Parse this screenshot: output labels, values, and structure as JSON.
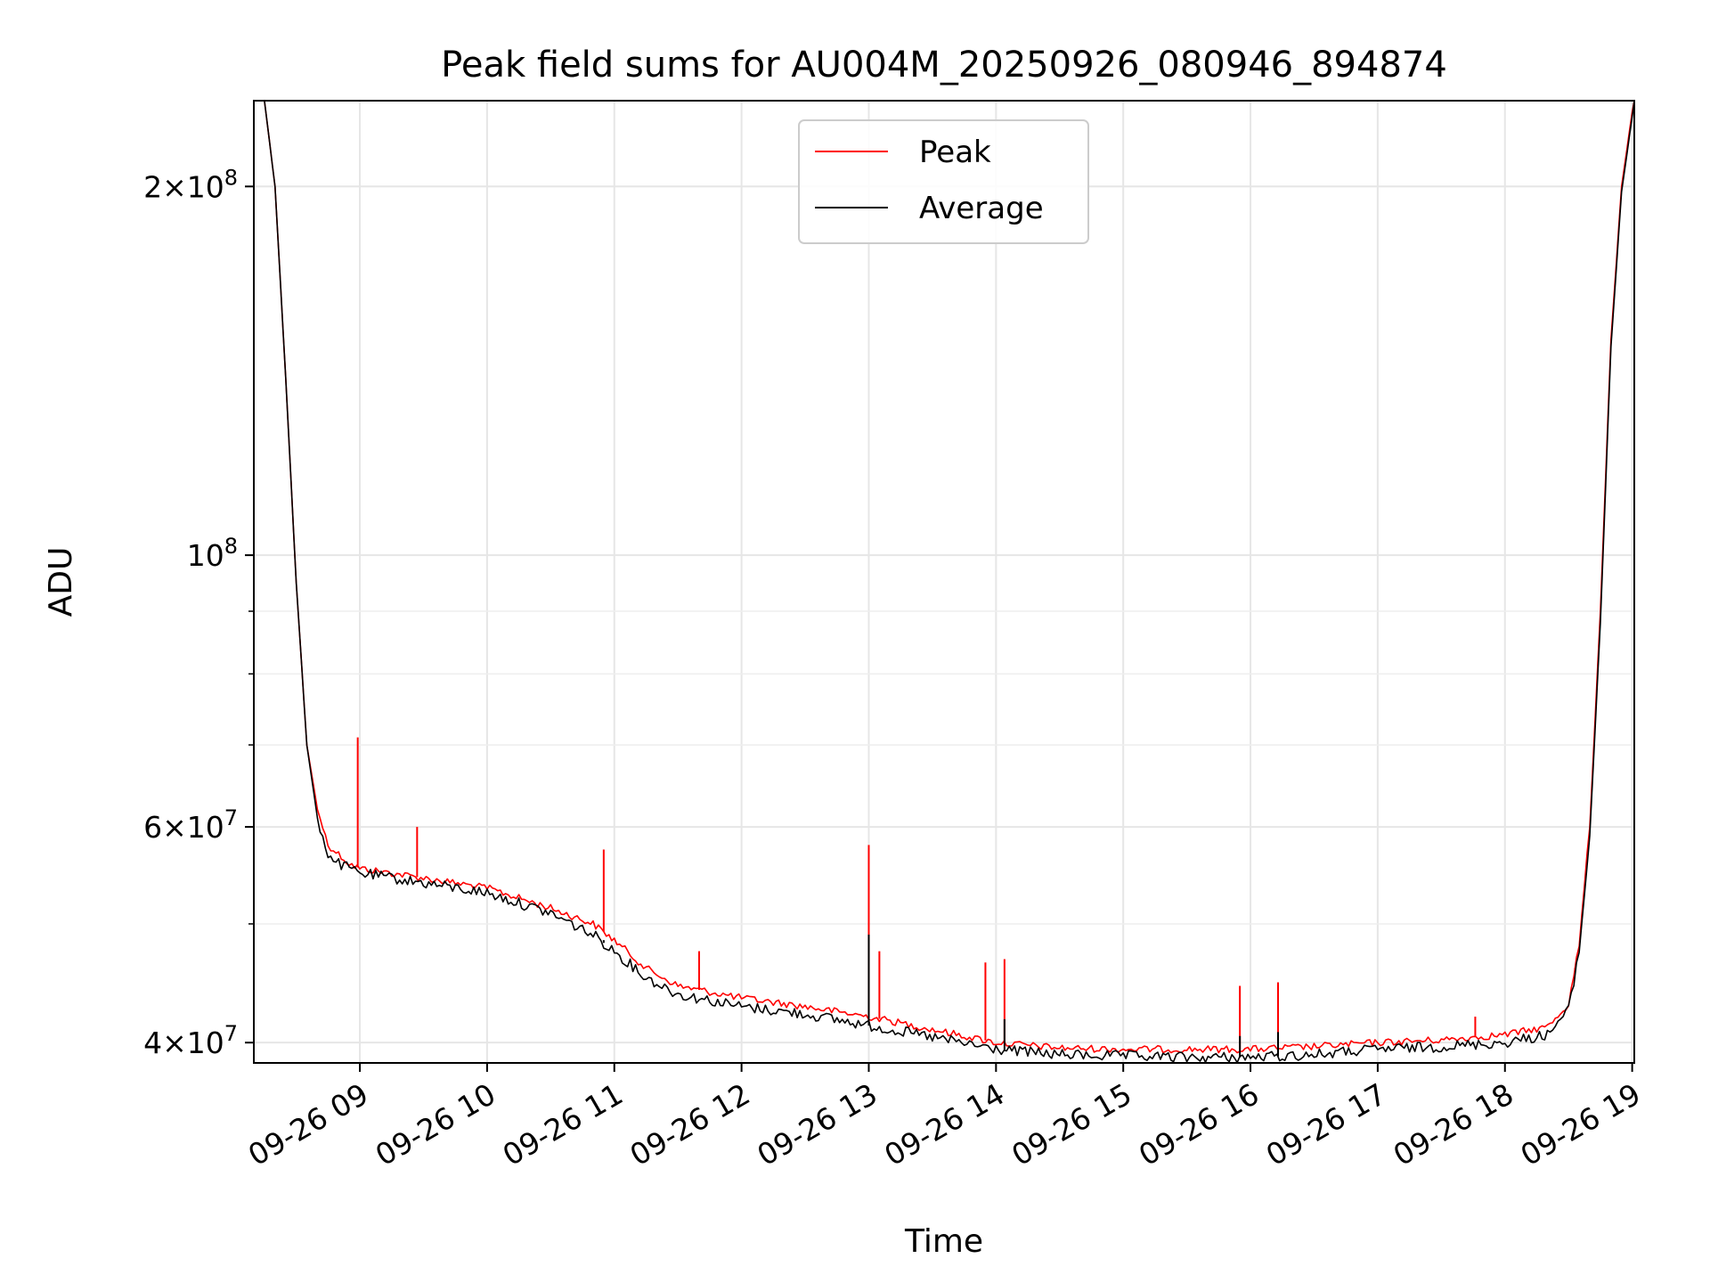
{
  "chart_data": {
    "type": "line",
    "title": "Peak field sums for AU004M_20250926_080946_894874",
    "xlabel": "Time",
    "ylabel": "ADU",
    "yscale": "log",
    "ylim": [
      38500000,
      235000000
    ],
    "xlim": [
      "2025-09-26 08:10",
      "2025-09-26 19:01"
    ],
    "grid": true,
    "legend_position": "upper center",
    "x_ticks": [
      "2025-09-26 09:00",
      "2025-09-26 10:00",
      "2025-09-26 11:00",
      "2025-09-26 12:00",
      "2025-09-26 13:00",
      "2025-09-26 14:00",
      "2025-09-26 15:00",
      "2025-09-26 16:00",
      "2025-09-26 17:00",
      "2025-09-26 18:00",
      "2025-09-26 19:00"
    ],
    "x_tick_labels": [
      "09-26 09",
      "09-26 10",
      "09-26 11",
      "09-26 12",
      "09-26 13",
      "09-26 14",
      "09-26 15",
      "09-26 16",
      "09-26 17",
      "09-26 18",
      "09-26 19"
    ],
    "y_major_ticks": [
      40000000,
      60000000,
      100000000,
      200000000
    ],
    "y_tick_labels": [
      {
        "mantissa": "4",
        "sep": "×",
        "base": "10",
        "exp": "7"
      },
      {
        "mantissa": "6",
        "sep": "×",
        "base": "10",
        "exp": "7"
      },
      {
        "mantissa": "",
        "sep": "",
        "base": "10",
        "exp": "8"
      },
      {
        "mantissa": "2",
        "sep": "×",
        "base": "10",
        "exp": "8"
      }
    ],
    "y_minor_ticks": [
      50000000,
      70000000,
      80000000,
      90000000
    ],
    "series": [
      {
        "name": "Peak",
        "color": "#ff0000",
        "x": [
          "2025-09-26 08:10",
          "2025-09-26 08:15",
          "2025-09-26 08:20",
          "2025-09-26 08:25",
          "2025-09-26 08:30",
          "2025-09-26 08:35",
          "2025-09-26 08:40",
          "2025-09-26 08:45",
          "2025-09-26 08:50",
          "2025-09-26 08:55",
          "2025-09-26 09:00",
          "2025-09-26 09:15",
          "2025-09-26 09:30",
          "2025-09-26 09:45",
          "2025-09-26 10:00",
          "2025-09-26 10:30",
          "2025-09-26 10:50",
          "2025-09-26 11:00",
          "2025-09-26 11:15",
          "2025-09-26 11:30",
          "2025-09-26 12:00",
          "2025-09-26 12:30",
          "2025-09-26 13:00",
          "2025-09-26 13:30",
          "2025-09-26 14:00",
          "2025-09-26 14:30",
          "2025-09-26 15:00",
          "2025-09-26 15:30",
          "2025-09-26 16:00",
          "2025-09-26 16:30",
          "2025-09-26 17:00",
          "2025-09-26 17:30",
          "2025-09-26 18:00",
          "2025-09-26 18:20",
          "2025-09-26 18:30",
          "2025-09-26 18:35",
          "2025-09-26 18:40",
          "2025-09-26 18:45",
          "2025-09-26 18:50",
          "2025-09-26 18:55",
          "2025-09-26 19:00",
          "2025-09-26 19:01"
        ],
        "y": [
          235000000,
          235000000,
          200000000,
          140000000,
          95000000,
          70000000,
          62000000,
          58000000,
          57000000,
          56000000,
          55500000,
          55000000,
          54500000,
          54000000,
          53500000,
          51500000,
          50000000,
          48500000,
          46000000,
          44500000,
          43500000,
          42800000,
          42000000,
          41000000,
          40000000,
          39600000,
          39500000,
          39500000,
          39500000,
          39700000,
          40000000,
          40200000,
          40600000,
          41200000,
          43000000,
          48000000,
          60000000,
          90000000,
          150000000,
          200000000,
          230000000,
          235000000
        ],
        "spikes": [
          {
            "x": "2025-09-26 08:59",
            "y": 71000000
          },
          {
            "x": "2025-09-26 09:27",
            "y": 60000000
          },
          {
            "x": "2025-09-26 10:55",
            "y": 57500000
          },
          {
            "x": "2025-09-26 11:40",
            "y": 47500000
          },
          {
            "x": "2025-09-26 13:00",
            "y": 58000000
          },
          {
            "x": "2025-09-26 13:05",
            "y": 47500000
          },
          {
            "x": "2025-09-26 13:55",
            "y": 46500000
          },
          {
            "x": "2025-09-26 14:04",
            "y": 46800000
          },
          {
            "x": "2025-09-26 15:55",
            "y": 44500000
          },
          {
            "x": "2025-09-26 16:13",
            "y": 44800000
          },
          {
            "x": "2025-09-26 17:46",
            "y": 42000000
          },
          {
            "x": "2025-09-26 18:33",
            "y": 46000000
          }
        ]
      },
      {
        "name": "Average",
        "color": "#000000",
        "x": [
          "2025-09-26 08:10",
          "2025-09-26 08:15",
          "2025-09-26 08:20",
          "2025-09-26 08:25",
          "2025-09-26 08:30",
          "2025-09-26 08:35",
          "2025-09-26 08:40",
          "2025-09-26 08:45",
          "2025-09-26 08:50",
          "2025-09-26 08:55",
          "2025-09-26 09:00",
          "2025-09-26 09:15",
          "2025-09-26 09:30",
          "2025-09-26 09:45",
          "2025-09-26 10:00",
          "2025-09-26 10:30",
          "2025-09-26 10:50",
          "2025-09-26 11:00",
          "2025-09-26 11:15",
          "2025-09-26 11:30",
          "2025-09-26 12:00",
          "2025-09-26 12:30",
          "2025-09-26 13:00",
          "2025-09-26 13:30",
          "2025-09-26 14:00",
          "2025-09-26 14:30",
          "2025-09-26 15:00",
          "2025-09-26 15:30",
          "2025-09-26 16:00",
          "2025-09-26 16:30",
          "2025-09-26 17:00",
          "2025-09-26 17:30",
          "2025-09-26 18:00",
          "2025-09-26 18:20",
          "2025-09-26 18:30",
          "2025-09-26 18:35",
          "2025-09-26 18:40",
          "2025-09-26 18:45",
          "2025-09-26 18:50",
          "2025-09-26 18:55",
          "2025-09-26 19:00",
          "2025-09-26 19:01"
        ],
        "y": [
          235000000,
          235000000,
          200000000,
          140000000,
          95000000,
          70000000,
          61000000,
          57000000,
          56000000,
          55500000,
          55000000,
          54500000,
          54000000,
          53500000,
          53000000,
          51000000,
          49000000,
          47500000,
          45200000,
          43800000,
          42800000,
          42200000,
          41300000,
          40400000,
          39500000,
          39100000,
          39000000,
          38900000,
          38900000,
          39100000,
          39500000,
          39700000,
          40000000,
          40600000,
          42500000,
          47500000,
          59000000,
          88000000,
          148000000,
          198000000,
          228000000,
          235000000
        ],
        "spikes": [
          {
            "x": "2025-09-26 13:00",
            "y": 49000000
          },
          {
            "x": "2025-09-26 10:55",
            "y": 48500000
          },
          {
            "x": "2025-09-26 14:04",
            "y": 41800000
          },
          {
            "x": "2025-09-26 16:13",
            "y": 40800000
          },
          {
            "x": "2025-09-26 15:55",
            "y": 40500000
          }
        ]
      }
    ]
  }
}
